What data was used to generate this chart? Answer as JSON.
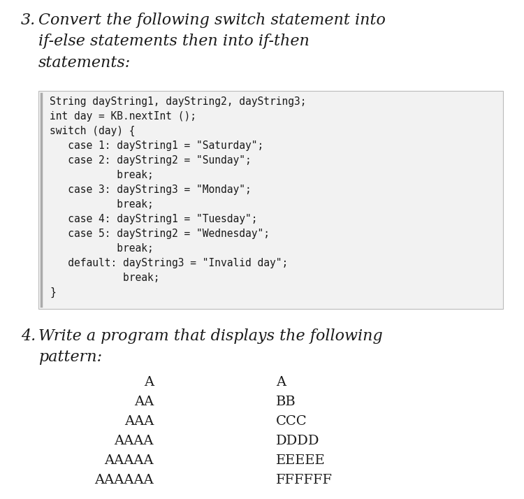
{
  "bg_color": "#ffffff",
  "question3_label": "3.",
  "question3_title": "Convert the following switch statement into\nif-else statements then into if-then\nstatements:",
  "code_lines": [
    "String dayString1, dayString2, dayString3;",
    "int day = KB.nextInt ();",
    "switch (day) {",
    "   case 1: dayString1 = \"Saturday\";",
    "   case 2: dayString2 = \"Sunday\";",
    "           break;",
    "   case 3: dayString3 = \"Monday\";",
    "           break;",
    "   case 4: dayString1 = \"Tuesday\";",
    "   case 5: dayString2 = \"Wednesday\";",
    "           break;",
    "   default: dayString3 = \"Invalid day\";",
    "            break;",
    "}"
  ],
  "question4_label": "4.",
  "question4_title": "Write a program that displays the following\npattern:",
  "pattern_left": [
    "A",
    "AA",
    "AAA",
    "AAAA",
    "AAAAA",
    "AAAAAA"
  ],
  "pattern_right": [
    "A",
    "BB",
    "CCC",
    "DDDD",
    "EEEEE",
    "FFFFFF"
  ],
  "text_color": "#1a1a1a",
  "code_bg": "#f2f2f2",
  "code_border": "#bbbbbb",
  "title_fontsize": 16,
  "label_fontsize": 16,
  "code_fontsize": 10.5,
  "pattern_fontsize": 14
}
